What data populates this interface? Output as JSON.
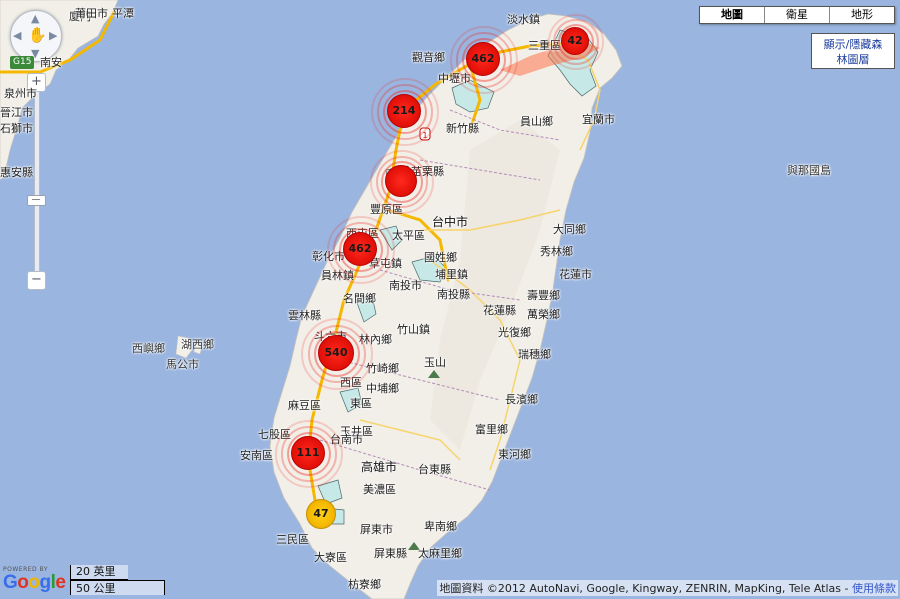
{
  "map_type_control": {
    "map": "地圖",
    "satellite": "衛星",
    "terrain": "地形"
  },
  "layer_toggle": {
    "line1": "顯示/隱藏森",
    "line2": "林圖層"
  },
  "nav": {
    "zoom_in": "+",
    "zoom_out": "−",
    "highway_badge": "G15"
  },
  "places": {
    "danshui": "淡水鎮",
    "sanzhi": "三重區",
    "guanyin": "觀音鄉",
    "zhongli": "中壢市",
    "hsinchu_county": "新竹縣",
    "yilan": "宜蘭市",
    "yuanshan": "員山鄉",
    "miaoli": "苗栗縣",
    "fengyuan": "豐原區",
    "taiping": "太平區",
    "taichung": "台中市",
    "xitun": "西屯區",
    "changhua": "彰化市",
    "caotun": "草屯鎮",
    "guoxing": "國姓鄉",
    "puli": "埔里鎮",
    "nantou": "南投市",
    "yuanlin": "員林鎮",
    "nantou_county": "南投縣",
    "mingjian": "名間鄉",
    "douliu": "斗六市",
    "linnei": "林內鄉",
    "zhushan": "竹山鎮",
    "yunlin": "雲林縣",
    "hualien_county": "花蓮縣",
    "guangfu": "光復鄉",
    "ruisui": "瑞穗鄉",
    "shoufeng": "壽豐鄉",
    "hualien": "花蓮市",
    "xiulin": "秀林鄉",
    "yushan": "玉山",
    "zhuqi": "竹崎鄉",
    "zhongpu": "中埔鄉",
    "xiqu": "西區",
    "dongqu": "東區",
    "madou": "麻豆區",
    "yujing": "玉井區",
    "tainan": "台南市",
    "anan": "安南區",
    "qigu": "七股區",
    "kaohsiung": "高雄市",
    "taitung_county": "台東縣",
    "donghe": "東河鄉",
    "fuli": "富里鄉",
    "changbin": "長濱鄉",
    "meinong": "美濃區",
    "pingtung": "屏東市",
    "pingtung_county": "屏東縣",
    "taimali": "太麻里鄉",
    "beinan": "卑南鄉",
    "sanmin": "三民區",
    "daliao": "大寮區",
    "fangliao": "枋寮鄉",
    "xiamen": "廈門",
    "jinjiang": "晉江市",
    "shishi": "石獅市",
    "quanzhou": "泉州市",
    "huian": "惠安縣",
    "nanan": "南安",
    "putian": "莆田市",
    "pingtan": "平潭",
    "yuwengdao": "與那國島",
    "xiyu": "西嶼鄉",
    "huxi": "湖西鄉",
    "magong": "馬公市",
    "heping": "和平區",
    "datong": "大同鄉",
    "wanrong": "萬榮鄉"
  },
  "markers": [
    {
      "count": "462",
      "color": "red"
    },
    {
      "count": "42",
      "color": "red"
    },
    {
      "count": "214",
      "color": "red"
    },
    {
      "count": "",
      "color": "red"
    },
    {
      "count": "462",
      "color": "red"
    },
    {
      "count": "540",
      "color": "red"
    },
    {
      "count": "111",
      "color": "red"
    },
    {
      "count": "47",
      "color": "yellow"
    }
  ],
  "scale": {
    "imperial": "20 英里",
    "metric": "50 公里"
  },
  "logo": {
    "powered_by": "POWERED BY",
    "wordmark": "Google"
  },
  "attribution": {
    "text": "地圖資料 ©2012 AutoNavi, Google, Kingway, ZENRIN, MapKing, Tele Atlas - ",
    "link": "使用條款"
  },
  "colors": {
    "sea": "#9ab5e0",
    "land": "#f2efe9",
    "forest": "#c6e8e6",
    "highway": "#f5b800",
    "cluster_red": "#e8140c",
    "cluster_yellow": "#f5b800"
  }
}
